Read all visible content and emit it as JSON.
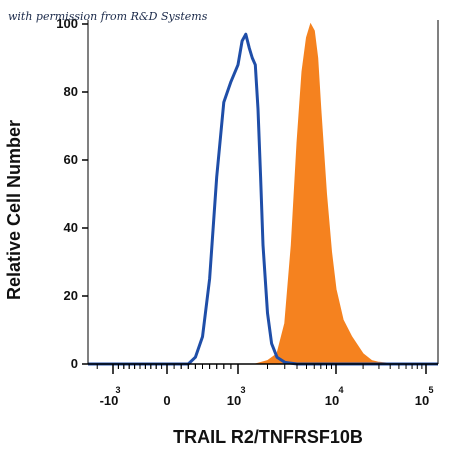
{
  "watermark": "with permission from R&D Systems",
  "chart_data": {
    "type": "area",
    "title": "",
    "xlabel": "TRAIL R2/TNFRSF10B",
    "ylabel": "Relative Cell Number",
    "x_scale": "biexponential",
    "x_ticks": [
      {
        "base": "-10",
        "exp": "3",
        "value": -1000
      },
      {
        "base": "0",
        "exp": "",
        "value": 0
      },
      {
        "base": "10",
        "exp": "3",
        "value": 1000
      },
      {
        "base": "10",
        "exp": "4",
        "value": 10000
      },
      {
        "base": "10",
        "exp": "5",
        "value": 100000
      }
    ],
    "y_ticks": [
      "0",
      "20",
      "40",
      "60",
      "80",
      "100"
    ],
    "ylim": [
      0,
      100
    ],
    "grid": false,
    "legend": "none",
    "series": [
      {
        "style": "filled",
        "color": "#f5821f",
        "x": [
          -3000,
          1500,
          2000,
          2500,
          3000,
          3500,
          4000,
          4500,
          5000,
          5500,
          6000,
          6500,
          7000,
          8000,
          9000,
          10000,
          12000,
          15000,
          20000,
          25000,
          30000,
          50000,
          150000
        ],
        "y": [
          0,
          0,
          1,
          3,
          12,
          35,
          65,
          86,
          96,
          100,
          98,
          90,
          75,
          50,
          33,
          22,
          13,
          8,
          3,
          1,
          0.5,
          0,
          0
        ]
      },
      {
        "style": "line",
        "color": "#1f4ea8",
        "x": [
          -3000,
          300,
          400,
          500,
          600,
          700,
          800,
          900,
          1000,
          1100,
          1200,
          1300,
          1400,
          1500,
          1600,
          1700,
          1800,
          2000,
          2200,
          2500,
          3000,
          4000,
          150000
        ],
        "y": [
          0,
          0,
          2,
          8,
          25,
          55,
          77,
          83,
          88,
          95,
          97,
          93,
          90,
          88,
          75,
          55,
          35,
          15,
          6,
          2,
          0.5,
          0,
          0
        ]
      }
    ]
  }
}
